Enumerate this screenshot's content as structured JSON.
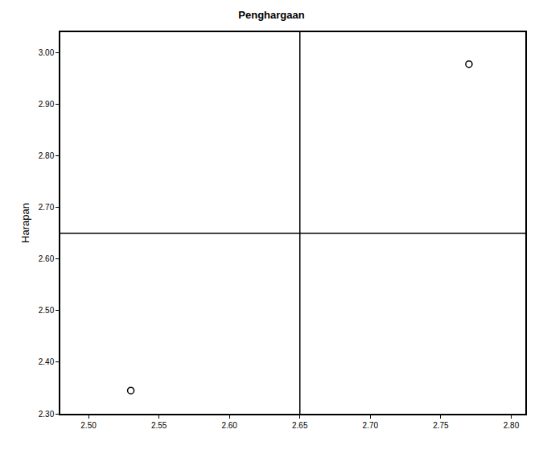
{
  "chart_data": {
    "type": "scatter",
    "title": "Penghargaan",
    "y_label": "Harapan",
    "x": [
      2.53,
      2.77
    ],
    "values": [
      2.345,
      2.978
    ],
    "xlim": [
      2.48,
      2.81
    ],
    "xticks": [
      {
        "value": 2.5,
        "label": "2.50"
      },
      2.55,
      {
        "value": 2.6,
        "label": "2.60"
      },
      2.65,
      {
        "value": 2.7,
        "label": "2.70"
      },
      2.75,
      {
        "value": 2.8,
        "label": "2.80"
      }
    ],
    "ylim": [
      2.3,
      3.04
    ],
    "yticks": [
      {
        "value": 2.3,
        "label": "2.30"
      },
      {
        "value": 2.4,
        "label": "2.40"
      },
      {
        "value": 2.5,
        "label": "2.50"
      },
      {
        "value": 2.6,
        "label": "2.60"
      },
      {
        "value": 2.7,
        "label": "2.70"
      },
      {
        "value": 2.8,
        "label": "2.80"
      },
      {
        "value": 2.9,
        "label": "2.90"
      },
      {
        "value": 3.0,
        "label": "3.00"
      }
    ],
    "reference_x": 2.65,
    "reference_y": 2.65,
    "marker": "circle-open",
    "color": "#000000",
    "grid": false
  }
}
